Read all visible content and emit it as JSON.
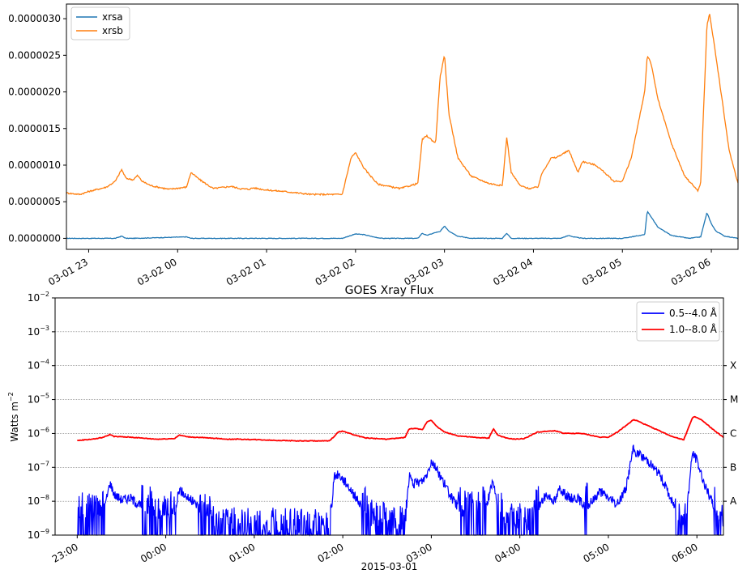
{
  "chart_data": [
    {
      "type": "line",
      "title": "",
      "xlabel": "",
      "ylabel": "",
      "xlim": [
        -0.25,
        7.3
      ],
      "ylim": [
        -1.5e-07,
        3.2e-06
      ],
      "x_ticks": [
        {
          "t": 0,
          "label": "03-01 23"
        },
        {
          "t": 1,
          "label": "03-02 00"
        },
        {
          "t": 2,
          "label": "03-02 01"
        },
        {
          "t": 3,
          "label": "03-02 02"
        },
        {
          "t": 4,
          "label": "03-02 03"
        },
        {
          "t": 5,
          "label": "03-02 04"
        },
        {
          "t": 6,
          "label": "03-02 05"
        },
        {
          "t": 7,
          "label": "03-02 06"
        }
      ],
      "y_ticks": [
        {
          "v": 0.0,
          "label": "0.0000000"
        },
        {
          "v": 5e-07,
          "label": "0.0000005"
        },
        {
          "v": 1e-06,
          "label": "0.0000010"
        },
        {
          "v": 1.5e-06,
          "label": "0.0000015"
        },
        {
          "v": 2e-06,
          "label": "0.0000020"
        },
        {
          "v": 2.5e-06,
          "label": "0.0000025"
        },
        {
          "v": 3e-06,
          "label": "0.0000030"
        }
      ],
      "legend_position": "upper-left",
      "grid": false,
      "series": [
        {
          "name": "xrsa",
          "color": "#1f77b4",
          "x": [
            -0.25,
            0.3,
            0.37,
            0.42,
            0.5,
            1.1,
            1.15,
            1.25,
            2.5,
            2.85,
            3.0,
            3.1,
            3.2,
            3.3,
            3.7,
            3.75,
            3.8,
            3.9,
            3.95,
            4.0,
            4.05,
            4.15,
            4.3,
            4.5,
            4.65,
            4.7,
            4.75,
            4.9,
            5.3,
            5.4,
            5.45,
            5.55,
            6.0,
            6.1,
            6.25,
            6.28,
            6.32,
            6.4,
            6.55,
            6.75,
            6.88,
            6.95,
            7.0,
            7.05,
            7.15,
            7.3
          ],
          "y": [
            0.0,
            0.0,
            3e-08,
            0.0,
            0.0,
            2e-08,
            0.0,
            0.0,
            0.0,
            0.0,
            6e-08,
            5e-08,
            2e-08,
            0.0,
            0.0,
            7e-08,
            4e-08,
            8e-08,
            9e-08,
            1.7e-07,
            1e-07,
            3e-08,
            0.0,
            0.0,
            0.0,
            7e-08,
            0.0,
            0.0,
            0.0,
            4e-08,
            2e-08,
            0.0,
            0.0,
            2e-08,
            5e-08,
            3.7e-07,
            3e-07,
            1.5e-07,
            4e-08,
            0.0,
            2e-08,
            3.5e-07,
            2e-07,
            1e-07,
            3e-08,
            0.0
          ]
        },
        {
          "name": "xrsb",
          "color": "#ff7f0e",
          "x": [
            -0.25,
            -0.1,
            0.0,
            0.2,
            0.3,
            0.37,
            0.42,
            0.5,
            0.55,
            0.6,
            0.7,
            0.9,
            1.1,
            1.15,
            1.25,
            1.4,
            1.6,
            1.7,
            1.8,
            1.85,
            2.0,
            2.2,
            2.5,
            2.85,
            2.95,
            3.0,
            3.1,
            3.25,
            3.5,
            3.7,
            3.75,
            3.8,
            3.9,
            3.95,
            4.0,
            4.05,
            4.15,
            4.3,
            4.5,
            4.65,
            4.7,
            4.75,
            4.85,
            4.95,
            5.05,
            5.1,
            5.2,
            5.25,
            5.4,
            5.5,
            5.55,
            5.7,
            5.8,
            5.9,
            6.0,
            6.1,
            6.2,
            6.25,
            6.28,
            6.32,
            6.4,
            6.55,
            6.7,
            6.85,
            6.88,
            6.95,
            6.98,
            7.05,
            7.2,
            7.3
          ],
          "y": [
            6.2e-07,
            6e-07,
            6.4e-07,
            7e-07,
            7.8e-07,
            9.4e-07,
            8.2e-07,
            8e-07,
            8.6e-07,
            7.8e-07,
            7.2e-07,
            6.7e-07,
            7e-07,
            9e-07,
            8e-07,
            6.8e-07,
            7.1e-07,
            6.8e-07,
            6.7e-07,
            6.9e-07,
            6.6e-07,
            6.4e-07,
            6e-07,
            6e-07,
            1.1e-06,
            1.17e-06,
            9.5e-07,
            7.4e-07,
            6.8e-07,
            7.5e-07,
            1.35e-06,
            1.4e-06,
            1.3e-06,
            2.2e-06,
            2.5e-06,
            1.7e-06,
            1.1e-06,
            8.5e-07,
            7.5e-07,
            7.2e-07,
            1.38e-06,
            9e-07,
            7.2e-07,
            6.8e-07,
            7e-07,
            9e-07,
            1.1e-06,
            1.1e-06,
            1.2e-06,
            9e-07,
            1.05e-06,
            1e-06,
            9e-07,
            7.8e-07,
            7.8e-07,
            1.1e-06,
            1.7e-06,
            2e-06,
            2.5e-06,
            2.4e-06,
            1.9e-06,
            1.3e-06,
            8.5e-07,
            6.5e-07,
            7.5e-07,
            2.9e-06,
            3.07e-06,
            2.5e-06,
            1.2e-06,
            7.5e-07
          ]
        }
      ]
    },
    {
      "type": "line",
      "title": "GOES Xray Flux",
      "xlabel": "2015-03-01",
      "ylabel": "Watts m",
      "ylabel_sup": "−2",
      "ylim_exp": [
        -9,
        -2
      ],
      "y_scale": "log",
      "xlim": [
        -0.25,
        7.3
      ],
      "x_ticks": [
        {
          "t": 0,
          "label": "23:00"
        },
        {
          "t": 1,
          "label": "00:00"
        },
        {
          "t": 2,
          "label": "01:00"
        },
        {
          "t": 3,
          "label": "02:00"
        },
        {
          "t": 4,
          "label": "03:00"
        },
        {
          "t": 5,
          "label": "04:00"
        },
        {
          "t": 6,
          "label": "05:00"
        },
        {
          "t": 7,
          "label": "06:00"
        }
      ],
      "y_ticks": [
        {
          "exp": -9,
          "label": "10",
          "sup": "−9"
        },
        {
          "exp": -8,
          "label": "10",
          "sup": "−8"
        },
        {
          "exp": -7,
          "label": "10",
          "sup": "−7"
        },
        {
          "exp": -6,
          "label": "10",
          "sup": "−6"
        },
        {
          "exp": -5,
          "label": "10",
          "sup": "−5"
        },
        {
          "exp": -4,
          "label": "10",
          "sup": "−4"
        },
        {
          "exp": -3,
          "label": "10",
          "sup": "−3"
        },
        {
          "exp": -2,
          "label": "10",
          "sup": "−2"
        }
      ],
      "flare_classes": [
        {
          "exp": -8,
          "label": "A"
        },
        {
          "exp": -7,
          "label": "B"
        },
        {
          "exp": -6,
          "label": "C"
        },
        {
          "exp": -5,
          "label": "M"
        },
        {
          "exp": -4,
          "label": "X"
        }
      ],
      "grid": true,
      "legend_position": "upper-right",
      "series": [
        {
          "name": "0.5--4.0 Å",
          "color": "#0000ff",
          "noisy": true,
          "x": [
            0.0,
            0.2,
            0.3,
            0.37,
            0.42,
            0.5,
            0.6,
            0.75,
            0.85,
            0.95,
            1.1,
            1.15,
            1.25,
            1.35,
            1.45,
            1.6,
            2.0,
            2.6,
            2.85,
            2.9,
            2.95,
            3.05,
            3.1,
            3.2,
            3.35,
            3.7,
            3.75,
            3.8,
            3.9,
            3.95,
            4.0,
            4.05,
            4.15,
            4.25,
            4.35,
            4.6,
            4.7,
            4.75,
            4.85,
            5.1,
            5.2,
            5.3,
            5.4,
            5.45,
            5.55,
            5.65,
            5.75,
            5.85,
            5.9,
            6.0,
            6.1,
            6.2,
            6.28,
            6.3,
            6.45,
            6.6,
            6.75,
            6.85,
            6.88,
            6.95,
            7.0,
            7.1,
            7.25,
            7.3
          ],
          "y_log": [
            -8.4,
            -8.4,
            -8.3,
            -7.45,
            -7.8,
            -7.95,
            -7.9,
            -8.2,
            -8.2,
            -8.6,
            -8.3,
            -7.65,
            -7.9,
            -8.1,
            -8.4,
            -8.9,
            -8.9,
            -8.9,
            -9.0,
            -7.3,
            -7.2,
            -7.5,
            -7.7,
            -8.1,
            -8.7,
            -8.8,
            -7.25,
            -7.5,
            -7.4,
            -7.2,
            -6.8,
            -7.0,
            -7.5,
            -8.0,
            -8.3,
            -8.3,
            -7.4,
            -8.3,
            -8.6,
            -8.8,
            -8.2,
            -7.8,
            -8.0,
            -7.6,
            -7.9,
            -7.9,
            -8.2,
            -7.9,
            -7.7,
            -7.9,
            -8.1,
            -7.6,
            -6.45,
            -6.55,
            -6.8,
            -7.3,
            -8.2,
            -8.7,
            -8.4,
            -6.55,
            -6.8,
            -7.6,
            -8.5,
            -8.7
          ]
        },
        {
          "name": "1.0--8.0 Å",
          "color": "#ff0000",
          "noisy": false,
          "x": [
            0.0,
            0.2,
            0.3,
            0.37,
            0.42,
            0.5,
            0.6,
            0.9,
            1.1,
            1.15,
            1.25,
            1.6,
            1.7,
            1.8,
            2.0,
            2.2,
            2.5,
            2.85,
            2.95,
            3.0,
            3.1,
            3.25,
            3.5,
            3.7,
            3.75,
            3.8,
            3.9,
            3.95,
            4.0,
            4.05,
            4.15,
            4.3,
            4.5,
            4.65,
            4.7,
            4.75,
            4.85,
            4.95,
            5.05,
            5.2,
            5.4,
            5.5,
            5.7,
            5.9,
            6.0,
            6.1,
            6.2,
            6.28,
            6.32,
            6.4,
            6.55,
            6.7,
            6.85,
            6.95,
            6.98,
            7.05,
            7.2,
            7.3
          ],
          "y_log": [
            -6.21,
            -6.16,
            -6.11,
            -6.03,
            -6.09,
            -6.1,
            -6.11,
            -6.17,
            -6.15,
            -6.05,
            -6.1,
            -6.15,
            -6.17,
            -6.17,
            -6.18,
            -6.2,
            -6.22,
            -6.22,
            -5.96,
            -5.93,
            -6.02,
            -6.13,
            -6.17,
            -6.12,
            -5.87,
            -5.85,
            -5.89,
            -5.66,
            -5.6,
            -5.77,
            -5.96,
            -6.07,
            -6.12,
            -6.14,
            -5.86,
            -6.05,
            -6.14,
            -6.17,
            -6.15,
            -5.96,
            -5.92,
            -6.0,
            -6.0,
            -6.11,
            -6.11,
            -5.96,
            -5.77,
            -5.6,
            -5.62,
            -5.72,
            -5.89,
            -6.07,
            -6.19,
            -5.54,
            -5.51,
            -5.6,
            -5.92,
            -6.12
          ]
        }
      ]
    }
  ]
}
